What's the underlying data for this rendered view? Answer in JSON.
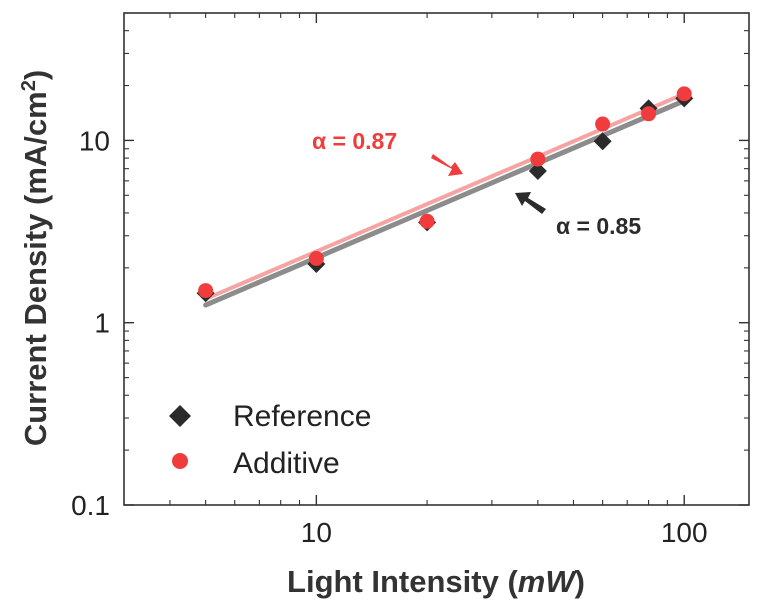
{
  "chart_data": {
    "type": "scatter",
    "scale": "log-log",
    "xlabel": "Light Intensity (mW)",
    "xlabel_parts": {
      "before": "Light Intensity (",
      "italic": "mW",
      "after": ")"
    },
    "ylabel": "Current Density (mA/cm2)",
    "ylabel_parts": {
      "before": "Current Density (mA/cm",
      "superscript": "2",
      "after": ")"
    },
    "xlim": [
      3,
      150
    ],
    "ylim": [
      0.1,
      50
    ],
    "x_ticks": [
      {
        "value": 10,
        "label": "10"
      },
      {
        "value": 100,
        "label": "100"
      }
    ],
    "y_ticks": [
      {
        "value": 0.1,
        "label": "0.1"
      },
      {
        "value": 1,
        "label": "1"
      },
      {
        "value": 10,
        "label": "10"
      }
    ],
    "series": [
      {
        "name": "Reference",
        "marker": "diamond",
        "color": "#2b2b2b",
        "fit_color": "#8c8c8c",
        "x": [
          5,
          10,
          20,
          40,
          60,
          80,
          100
        ],
        "y": [
          1.45,
          2.1,
          3.55,
          6.8,
          9.9,
          15.0,
          17.0
        ],
        "fit": {
          "alpha": 0.85,
          "x0": 5,
          "y0": 1.25,
          "x1": 100,
          "y1": 16.5
        }
      },
      {
        "name": "Additive",
        "marker": "circle",
        "color": "#f03c3c",
        "fit_color": "#f5a3a3",
        "x": [
          5,
          10,
          20,
          40,
          60,
          80,
          100
        ],
        "y": [
          1.5,
          2.25,
          3.6,
          7.9,
          12.3,
          14.0,
          18.0
        ],
        "fit": {
          "alpha": 0.87,
          "x0": 5,
          "y0": 1.35,
          "x1": 100,
          "y1": 18.0
        }
      }
    ],
    "annotations": [
      {
        "text": "α = 0.87",
        "color": "#f03c3c",
        "series": "Additive"
      },
      {
        "text": "α = 0.85",
        "color": "#2b2b2b",
        "series": "Reference"
      }
    ],
    "legend": {
      "placement": "bottom-left",
      "entries": [
        "Reference",
        "Additive"
      ]
    }
  }
}
